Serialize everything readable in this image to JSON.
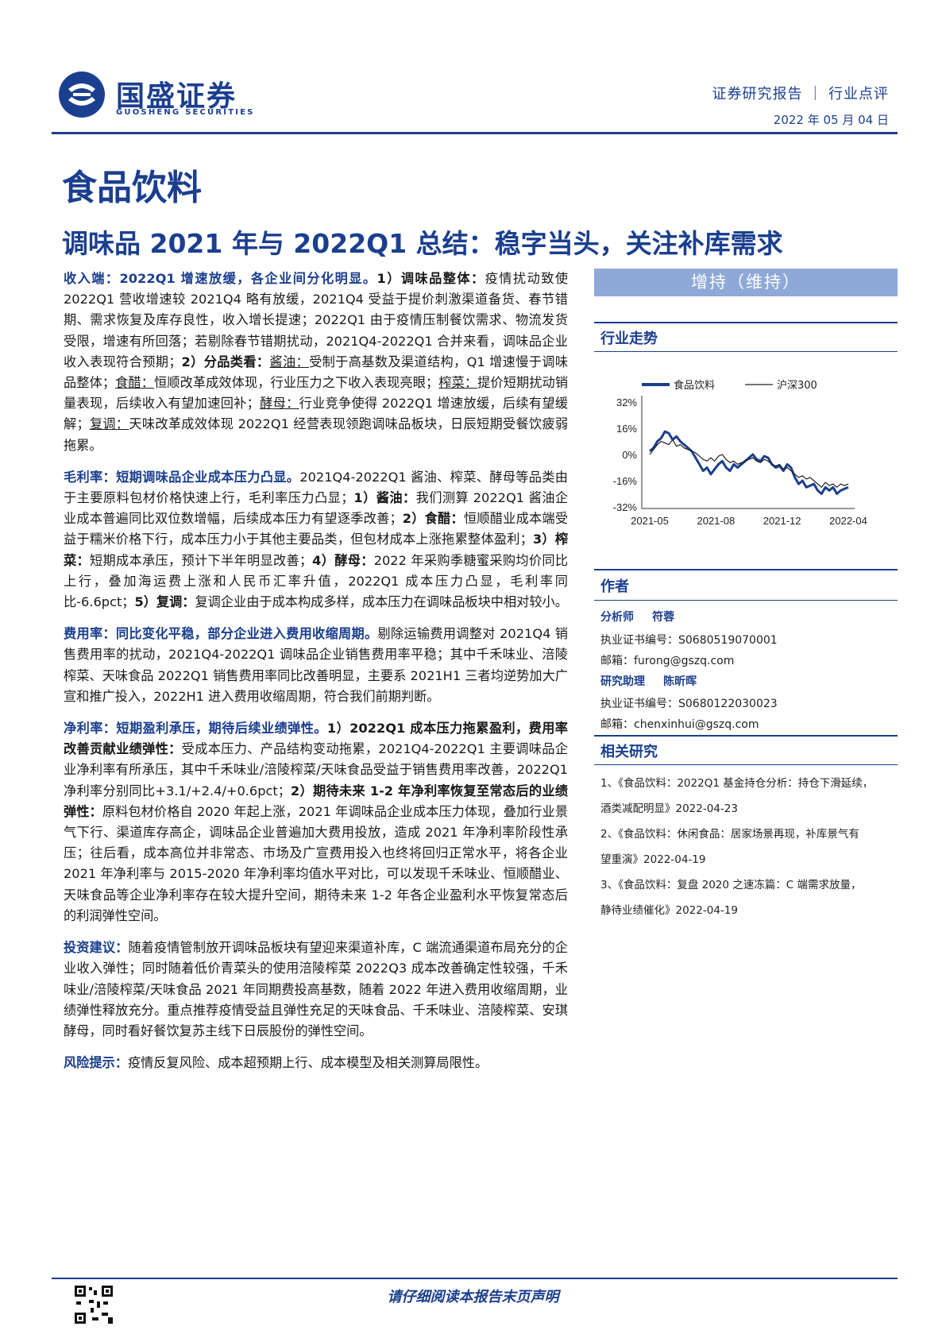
{
  "header": {
    "logo_cn": "国盛证券",
    "logo_en": "GUOSHENG SECURITIES",
    "report_type": "证券研究报告 ｜ 行业点评",
    "date": "2022 年 05 月 04 日"
  },
  "sector": "食品饮料",
  "title": "调味品 2021 年与 2022Q1 总结：稳字当头，关注补库需求",
  "sections": {
    "revenue": {
      "lead": "收入端：2022Q1 增速放缓，各企业间分化明显。",
      "p1_b": "1）调味品整体：",
      "p1": "疫情扰动致使 2022Q1 营收增速较 2021Q4 略有放缓，2021Q4 受益于提价刺激渠道备货、春节错期、需求恢复及库存良性，收入增长提速；2022Q1 由于疫情压制餐饮需求、物流发货受限，增速有所回落；若剔除春节错期扰动，2021Q4-2022Q1 合并来看，调味品企业收入表现符合预期；",
      "p2_b": "2）分品类看：",
      "soy_u": "酱油：",
      "soy": "受制于高基数及渠道结构，Q1 增速慢于调味品整体；",
      "vinegar_u": "食醋：",
      "vinegar": "恒顺改革成效体现，行业压力之下收入表现亮眼；",
      "zhacai_u": "榨菜：",
      "zhacai": "提价短期扰动销量表现，后续收入有望加速回补；",
      "yeast_u": "酵母：",
      "yeast": "行业竞争使得 2022Q1 增速放缓，后续有望缓解；",
      "compound_u": "复调：",
      "compound": "天味改革成效体现 2022Q1 经营表现领跑调味品板块，日辰短期受餐饮疲弱拖累。"
    },
    "gross": {
      "lead": "毛利率：短期调味品企业成本压力凸显。",
      "t1": "2021Q4-2022Q1 酱油、榨菜、酵母等品类由于主要原料包材价格快速上行，毛利率压力凸显；",
      "b1": "1）酱油：",
      "t2": "我们测算 2022Q1 酱油企业成本普遍同比双位数增幅，后续成本压力有望逐季改善；",
      "b2": "2）食醋：",
      "t3": "恒顺醋业成本端受益于糯米价格下行，成本压力小于其他主要品类，但包材成本上涨拖累整体盈利；",
      "b3": "3）榨菜：",
      "t4": "短期成本承压，预计下半年明显改善；",
      "b4": "4）酵母：",
      "t5": "2022 年采购季糖蜜采购均价同比上行，叠加海运费上涨和人民币汇率升值，2022Q1 成本压力凸显，毛利率同比-6.6pct；",
      "b5": "5）复调：",
      "t6": "复调企业由于成本构成多样，成本压力在调味品板块中相对较小。"
    },
    "expense": {
      "lead": "费用率：同比变化平稳，部分企业进入费用收缩周期。",
      "text": "剔除运输费用调整对 2021Q4 销售费用率的扰动，2021Q4-2022Q1 调味品企业销售费用率平稳；其中千禾味业、涪陵榨菜、天味食品 2022Q1 销售费用率同比改善明显，主要系 2021H1 三者均逆势加大广宣和推广投入，2022H1 进入费用收缩周期，符合我们前期判断。"
    },
    "net": {
      "lead": "净利率：短期盈利承压，期待后续业绩弹性。",
      "b1": "1）2022Q1 成本压力拖累盈利，费用率改善贡献业绩弹性：",
      "t1": "受成本压力、产品结构变动拖累，2021Q4-2022Q1 主要调味品企业净利率有所承压，其中千禾味业/涪陵榨菜/天味食品受益于销售费用率改善，2022Q1 净利率分别同比+3.1/+2.4/+0.6pct；",
      "b2": "2）期待未来 1-2 年净利率恢复至常态后的业绩弹性：",
      "t2": "原料包材价格自 2020 年起上涨，2021 年调味品企业成本压力体现，叠加行业景气下行、渠道库存高企，调味品企业普遍加大费用投放，造成 2021 年净利率阶段性承压；往后看，成本高位并非常态、市场及广宣费用投入也终将回归正常水平，将各企业 2021 年净利率与 2015-2020 年净利率均值水平对比，可以发现千禾味业、恒顺醋业、天味食品等企业净利率存在较大提升空间，期待未来 1-2 年各企业盈利水平恢复常态后的利润弹性空间。"
    },
    "invest": {
      "lead": "投资建议：",
      "text": "随着疫情管制放开调味品板块有望迎来渠道补库，C 端流通渠道布局充分的企业收入弹性；同时随着低价青菜头的使用涪陵榨菜 2022Q3 成本改善确定性较强，千禾味业/涪陵榨菜/天味食品 2021 年同期费投高基数，随着 2022 年进入费用收缩周期，业绩弹性释放充分。重点推荐疫情受益且弹性充足的天味食品、千禾味业、涪陵榨菜、安琪酵母，同时看好餐饮复苏主线下日辰股份的弹性空间。"
    },
    "risk": {
      "lead": "风险提示：",
      "text": "疫情反复风险、成本超预期上行、成本模型及相关测算局限性。"
    }
  },
  "rating": "增持（维持）",
  "trend_heading": "行业走势",
  "chart_data": {
    "type": "line",
    "x_ticks": [
      "2021-05",
      "2021-08",
      "2021-12",
      "2022-04"
    ],
    "y_ticks": [
      "32%",
      "16%",
      "0%",
      "-16%",
      "-32%"
    ],
    "ylim": [
      -32,
      32
    ],
    "series": [
      {
        "name": "食品饮料",
        "color": "#1b3f8f",
        "values": [
          2,
          4,
          8,
          10,
          14,
          13,
          9,
          11,
          8,
          6,
          4,
          2,
          -2,
          -6,
          -10,
          -8,
          -12,
          -9,
          -6,
          -4,
          -8,
          -10,
          -6,
          -8,
          -6,
          -4,
          -2,
          0,
          -3,
          -4,
          -1,
          -2,
          -6,
          -8,
          -7,
          -10,
          -6,
          -8,
          -14,
          -18,
          -16,
          -20,
          -19,
          -18,
          -22,
          -24,
          -20,
          -22,
          -20,
          -24,
          -22,
          -21,
          -20
        ]
      },
      {
        "name": "沪深300",
        "color": "#222222",
        "values": [
          0,
          3,
          6,
          8,
          7,
          6,
          9,
          5,
          6,
          4,
          3,
          2,
          1,
          -1,
          -3,
          -4,
          -2,
          -4,
          -1,
          0,
          -3,
          -5,
          -4,
          -6,
          -5,
          -4,
          -3,
          -2,
          -4,
          -5,
          -3,
          -4,
          -6,
          -7,
          -6,
          -9,
          -8,
          -10,
          -12,
          -14,
          -13,
          -15,
          -14,
          -16,
          -18,
          -20,
          -17,
          -19,
          -18,
          -20,
          -18,
          -19,
          -18
        ]
      }
    ]
  },
  "authors": {
    "heading": "作者",
    "analyst_role": "分析师",
    "analyst_name": "符蓉",
    "analyst_cert": "执业证书编号：S0680519070001",
    "analyst_email": "邮箱：furong@gszq.com",
    "assistant_role": "研究助理",
    "assistant_name": "陈昕晖",
    "assistant_cert": "执业证书编号：S0680122030023",
    "assistant_email": "邮箱：chenxinhui@gszq.com"
  },
  "related": {
    "heading": "相关研究",
    "items": [
      {
        "a": "1、《食品饮料：2022Q1 基金持仓分析：持仓下滑延续，",
        "b": "酒类减配明显》2022-04-23"
      },
      {
        "a": "2、《食品饮料：休闲食品：居家场景再现，补库景气有",
        "b": "望重演》2022-04-19"
      },
      {
        "a": "3、《食品饮料：复盘 2020 之速冻篇：C 端需求放量，",
        "b": "静待业绩催化》2022-04-19"
      }
    ]
  },
  "footer": "请仔细阅读本报告末页声明"
}
